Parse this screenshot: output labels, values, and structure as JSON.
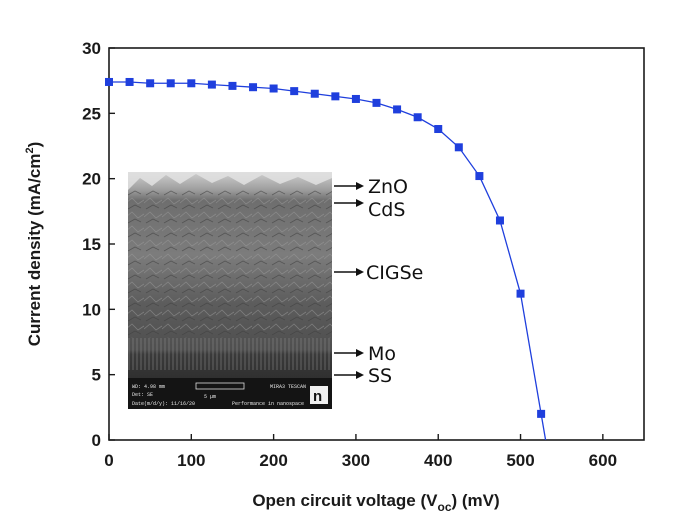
{
  "chart_data": {
    "type": "scatter",
    "title": "",
    "xlabel": "Open circuit voltage (V",
    "xlabel_sub": "oc",
    "xlabel_unit": ") (mV)",
    "ylabel": "Current density (mA/cm",
    "ylabel_sup": "2",
    "ylabel_end": ")",
    "xlim": [
      0,
      650
    ],
    "ylim": [
      0,
      30
    ],
    "xticks": [
      0,
      100,
      200,
      300,
      400,
      500,
      600
    ],
    "yticks": [
      0,
      5,
      10,
      15,
      20,
      25,
      30
    ],
    "grid": false,
    "legend": "none",
    "series": [
      {
        "marker": "square",
        "color": "#1f3fdd",
        "connected": true,
        "x": [
          0,
          25,
          50,
          75,
          100,
          125,
          150,
          175,
          200,
          225,
          250,
          275,
          300,
          325,
          350,
          375,
          400,
          425,
          450,
          475,
          500,
          525
        ],
        "y": [
          27.4,
          27.4,
          27.3,
          27.3,
          27.3,
          27.2,
          27.1,
          27.0,
          26.9,
          26.7,
          26.5,
          26.3,
          26.1,
          25.8,
          25.3,
          24.7,
          23.8,
          22.4,
          20.2,
          16.8,
          11.2,
          2.0
        ]
      }
    ]
  },
  "inset": {
    "layers": [
      "ZnO",
      "CdS",
      "CIGSe",
      "Mo",
      "SS"
    ],
    "sem_text": {
      "left": "WD: 4.98 mm",
      "left2": "Det: SE",
      "date": "Date(m/d/y): 11/16/20",
      "scale": "5 µm",
      "right": "MIRA3 TESCAN",
      "right2": "Performance in nanospace",
      "logo": "n"
    }
  },
  "colors": {
    "series": "#1f3fdd",
    "axis": "#1a1a1a",
    "background": "#ffffff"
  }
}
